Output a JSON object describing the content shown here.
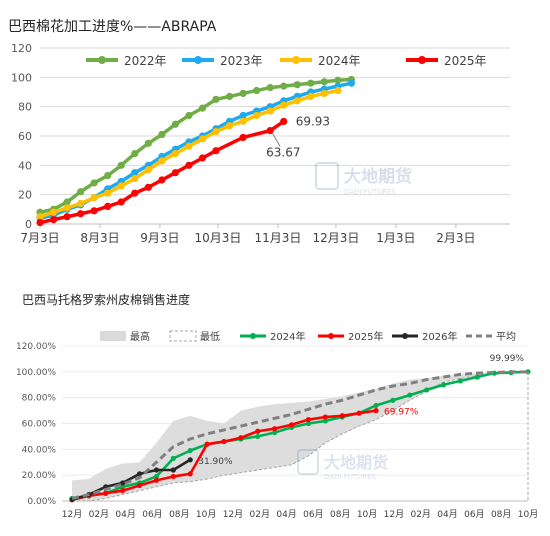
{
  "chart_data": [
    {
      "type": "line",
      "title": "巴西棉花加工进度%——ABRAPA",
      "ylim": [
        0,
        120
      ],
      "y_ticks": [
        "0",
        "20",
        "40",
        "60",
        "80",
        "100",
        "120"
      ],
      "x_tick_labels": [
        "7月3日",
        "8月3日",
        "9月3日",
        "10月3日",
        "11月3日",
        "12月3日",
        "1月3日",
        "2月3日"
      ],
      "grid": "horizontal",
      "legend_position": "top",
      "series": [
        {
          "name": "2022年",
          "color": "#70ad47",
          "points": [
            [
              "7月3日",
              8
            ],
            [
              "7月10日",
              10
            ],
            [
              "7月17日",
              15
            ],
            [
              "7月24日",
              22
            ],
            [
              "7月31日",
              28
            ],
            [
              "8月7日",
              33
            ],
            [
              "8月14日",
              40
            ],
            [
              "8月21日",
              48
            ],
            [
              "8月28日",
              55
            ],
            [
              "9月4日",
              61
            ],
            [
              "9月11日",
              68
            ],
            [
              "9月18日",
              74
            ],
            [
              "9月25日",
              79
            ],
            [
              "10月2日",
              85
            ],
            [
              "10月9日",
              87
            ],
            [
              "10月16日",
              89
            ],
            [
              "10月23日",
              91
            ],
            [
              "10月30日",
              93
            ],
            [
              "11月6日",
              94
            ],
            [
              "11月13日",
              95
            ],
            [
              "11月20日",
              96
            ],
            [
              "11月27日",
              97
            ],
            [
              "12月4日",
              98
            ],
            [
              "12月11日",
              98.5
            ]
          ]
        },
        {
          "name": "2023年",
          "color": "#1eaaf1",
          "points": [
            [
              "7月3日",
              4
            ],
            [
              "7月10日",
              6
            ],
            [
              "7月17日",
              10
            ],
            [
              "7月24日",
              13
            ],
            [
              "7月31日",
              18
            ],
            [
              "8月7日",
              24
            ],
            [
              "8月14日",
              29
            ],
            [
              "8月21日",
              35
            ],
            [
              "8月28日",
              40
            ],
            [
              "9月4日",
              46
            ],
            [
              "9月11日",
              51
            ],
            [
              "9月18日",
              56
            ],
            [
              "9月25日",
              60
            ],
            [
              "10月2日",
              65
            ],
            [
              "10月9日",
              70
            ],
            [
              "10月16日",
              74
            ],
            [
              "10月23日",
              77
            ],
            [
              "10月30日",
              80
            ],
            [
              "11月6日",
              84
            ],
            [
              "11月13日",
              87
            ],
            [
              "11月20日",
              90
            ],
            [
              "11月27日",
              92
            ],
            [
              "12月4日",
              94
            ],
            [
              "12月11日",
              96
            ]
          ]
        },
        {
          "name": "2024年",
          "color": "#ffc000",
          "points": [
            [
              "7月3日",
              5
            ],
            [
              "7月10日",
              8
            ],
            [
              "7月17日",
              11
            ],
            [
              "7月24日",
              14
            ],
            [
              "7月31日",
              18
            ],
            [
              "8月7日",
              21
            ],
            [
              "8月14日",
              26
            ],
            [
              "8月21日",
              31
            ],
            [
              "8月28日",
              37
            ],
            [
              "9月4日",
              43
            ],
            [
              "9月11日",
              48
            ],
            [
              "9月18日",
              53
            ],
            [
              "9月25日",
              58
            ],
            [
              "10月2日",
              63
            ],
            [
              "10月9日",
              67
            ],
            [
              "10月16日",
              70
            ],
            [
              "10月23日",
              74
            ],
            [
              "10月30日",
              77
            ],
            [
              "11月6日",
              81
            ],
            [
              "11月13日",
              84
            ],
            [
              "11月20日",
              87
            ],
            [
              "11月27日",
              89
            ],
            [
              "12月4日",
              91
            ]
          ]
        },
        {
          "name": "2025年",
          "color": "#ff0000",
          "points": [
            [
              "7月3日",
              1
            ],
            [
              "7月10日",
              3
            ],
            [
              "7月17日",
              5
            ],
            [
              "7月24日",
              7
            ],
            [
              "7月31日",
              9
            ],
            [
              "8月7日",
              12
            ],
            [
              "8月14日",
              15
            ],
            [
              "8月21日",
              21
            ],
            [
              "8月28日",
              25
            ],
            [
              "9月4日",
              30
            ],
            [
              "9月11日",
              35
            ],
            [
              "9月18日",
              40
            ],
            [
              "9月25日",
              45
            ],
            [
              "10月2日",
              50
            ],
            [
              "10月16日",
              59
            ],
            [
              "10月30日",
              63.67
            ],
            [
              "11月6日",
              69.93
            ]
          ]
        }
      ],
      "annotations": [
        "69.93",
        "63.67"
      ]
    },
    {
      "type": "line",
      "title": "巴西马托格罗索州皮棉销售进度",
      "ylim": [
        0,
        120
      ],
      "y_ticks": [
        "0.00%",
        "20.00%",
        "40.00%",
        "60.00%",
        "80.00%",
        "100.00%",
        "120.00%"
      ],
      "x_tick_labels": [
        "12月",
        "02月",
        "04月",
        "06月",
        "08月",
        "10月",
        "12月",
        "02月",
        "04月",
        "06月",
        "08月",
        "10月",
        "12月",
        "02月",
        "04月",
        "06月",
        "08月",
        "10月"
      ],
      "legend_position": "top",
      "legend": [
        "最高",
        "最低",
        "2024年",
        "2025年",
        "2026年",
        "平均"
      ],
      "band": {
        "name": "最高/最低",
        "color": "#d9d9d9",
        "high": [
          [
            0,
            16
          ],
          [
            1,
            17
          ],
          [
            2,
            25
          ],
          [
            3,
            29
          ],
          [
            4,
            30
          ],
          [
            5,
            45
          ],
          [
            6,
            62
          ],
          [
            7,
            66
          ],
          [
            8,
            62
          ],
          [
            9,
            60
          ],
          [
            10,
            70
          ],
          [
            11,
            73
          ],
          [
            12,
            75
          ],
          [
            13,
            76
          ],
          [
            14,
            77
          ],
          [
            15,
            79
          ],
          [
            16,
            81
          ],
          [
            17,
            84
          ],
          [
            18,
            87
          ],
          [
            19,
            91
          ],
          [
            20,
            94
          ],
          [
            21,
            95
          ],
          [
            22,
            97
          ],
          [
            23,
            98
          ],
          [
            24,
            99
          ],
          [
            25,
            99.5
          ],
          [
            26,
            100
          ],
          [
            27,
            100
          ]
        ],
        "low": [
          [
            0,
            0
          ],
          [
            1,
            0
          ],
          [
            2,
            2
          ],
          [
            3,
            5
          ],
          [
            4,
            8
          ],
          [
            5,
            11
          ],
          [
            6,
            14
          ],
          [
            7,
            15
          ],
          [
            8,
            17
          ],
          [
            9,
            20
          ],
          [
            10,
            22
          ],
          [
            11,
            24
          ],
          [
            12,
            26
          ],
          [
            13,
            28
          ],
          [
            14,
            35
          ],
          [
            15,
            45
          ],
          [
            16,
            52
          ],
          [
            17,
            58
          ],
          [
            18,
            63
          ],
          [
            19,
            70
          ],
          [
            20,
            78
          ],
          [
            21,
            85
          ],
          [
            22,
            92
          ],
          [
            23,
            95
          ],
          [
            24,
            97
          ],
          [
            25,
            98
          ],
          [
            26,
            99
          ],
          [
            27,
            100
          ]
        ]
      },
      "series": [
        {
          "name": "2024年",
          "color": "#00b050",
          "points": [
            [
              0,
              2
            ],
            [
              1,
              4
            ],
            [
              2,
              6
            ],
            [
              3,
              11
            ],
            [
              4,
              14
            ],
            [
              5,
              19
            ],
            [
              6,
              33
            ],
            [
              7,
              39
            ],
            [
              8,
              44
            ],
            [
              9,
              46
            ],
            [
              10,
              48
            ],
            [
              11,
              50
            ],
            [
              12,
              53
            ],
            [
              13,
              57
            ],
            [
              14,
              60
            ],
            [
              15,
              62
            ],
            [
              16,
              65
            ],
            [
              17,
              68
            ],
            [
              18,
              74
            ],
            [
              19,
              78
            ],
            [
              20,
              82
            ],
            [
              21,
              86
            ],
            [
              22,
              90
            ],
            [
              23,
              93
            ],
            [
              24,
              96
            ],
            [
              25,
              99
            ],
            [
              26,
              99.5
            ],
            [
              27,
              99.99
            ]
          ]
        },
        {
          "name": "2025年",
          "color": "#ff0000",
          "points": [
            [
              0,
              1
            ],
            [
              1,
              4
            ],
            [
              2,
              6
            ],
            [
              3,
              8
            ],
            [
              4,
              12
            ],
            [
              5,
              16
            ],
            [
              6,
              19
            ],
            [
              7,
              21
            ],
            [
              8,
              44
            ],
            [
              9,
              46
            ],
            [
              10,
              49
            ],
            [
              11,
              54
            ],
            [
              12,
              56
            ],
            [
              13,
              59
            ],
            [
              14,
              63
            ],
            [
              15,
              65
            ],
            [
              16,
              66
            ],
            [
              17,
              68
            ],
            [
              18,
              69.97
            ]
          ]
        },
        {
          "name": "2026年",
          "color": "#262626",
          "points": [
            [
              0,
              1
            ],
            [
              1,
              5
            ],
            [
              2,
              11
            ],
            [
              3,
              14
            ],
            [
              4,
              21
            ],
            [
              5,
              24
            ],
            [
              6,
              24
            ],
            [
              7,
              31.9
            ]
          ]
        },
        {
          "name": "平均",
          "color": "#808080",
          "dashed": true,
          "points": [
            [
              0,
              2
            ],
            [
              1,
              5
            ],
            [
              2,
              9
            ],
            [
              3,
              13
            ],
            [
              4,
              18
            ],
            [
              5,
              30
            ],
            [
              6,
              42
            ],
            [
              7,
              48
            ],
            [
              8,
              52
            ],
            [
              9,
              55
            ],
            [
              10,
              58
            ],
            [
              11,
              61
            ],
            [
              12,
              64
            ],
            [
              13,
              67
            ],
            [
              14,
              71
            ],
            [
              15,
              75
            ],
            [
              16,
              78
            ],
            [
              17,
              82
            ],
            [
              18,
              86
            ],
            [
              19,
              89
            ],
            [
              20,
              91
            ],
            [
              21,
              94
            ],
            [
              22,
              96
            ],
            [
              23,
              98
            ],
            [
              24,
              99
            ],
            [
              25,
              99.5
            ],
            [
              26,
              100
            ],
            [
              27,
              100
            ]
          ]
        }
      ],
      "annotations": [
        "99.99%",
        "69.97%",
        "31.90%"
      ]
    }
  ],
  "watermark": {
    "brand_cn": "大地期货",
    "brand_en": "DADI FUTURES"
  }
}
